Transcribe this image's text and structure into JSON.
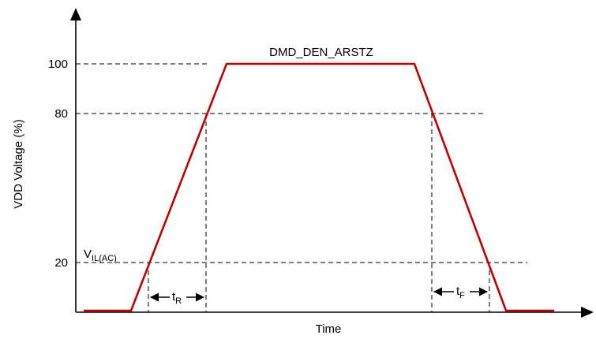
{
  "diagram": {
    "signal_label": "DMD_DEN_ARSTZ",
    "y_axis_label": "VDD Voltage (%)",
    "x_axis_label": "Time",
    "y_ticks": [
      "100",
      "80",
      "20"
    ],
    "vil_label": {
      "main": "V",
      "sub": "IL(AC)"
    },
    "rise_time_label": {
      "main": "t",
      "sub": "R"
    },
    "fall_time_label": {
      "main": "t",
      "sub": "F"
    }
  },
  "colors": {
    "signal": "#c00000",
    "axis": "#000000"
  }
}
